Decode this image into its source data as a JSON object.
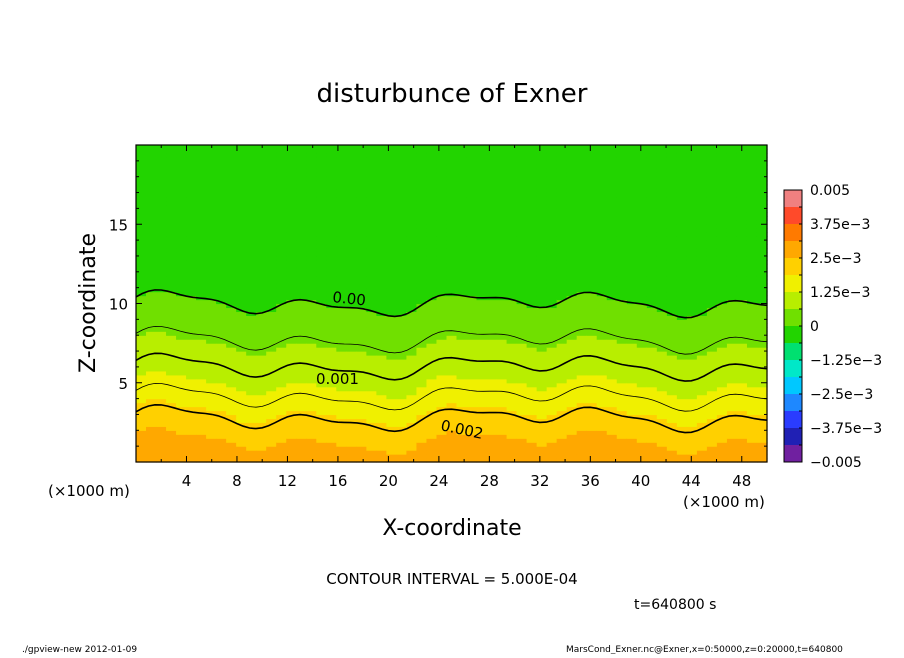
{
  "chart_data": {
    "type": "heatmap",
    "title": "disturbunce of Exner",
    "xlabel": "X-coordinate",
    "ylabel": "Z-coordinate",
    "x_unit_left": "(×1000 m)",
    "x_unit_right": "(×1000 m)",
    "xlim": [
      0,
      50
    ],
    "ylim": [
      0,
      20
    ],
    "x_ticks": [
      4,
      8,
      12,
      16,
      20,
      24,
      28,
      32,
      36,
      40,
      44,
      48
    ],
    "x_tick_labels": [
      "4",
      "8",
      "12",
      "16",
      "20",
      "24",
      "28",
      "32",
      "36",
      "40",
      "44",
      "48"
    ],
    "y_ticks": [
      5,
      10,
      15
    ],
    "y_tick_labels": [
      "5",
      "10",
      "15"
    ],
    "grid": false,
    "colorbar": {
      "placement": "right",
      "range": [
        -0.005,
        0.005
      ],
      "levels": 16,
      "labels": [
        "0.005",
        "3.75e−3",
        "2.5e−3",
        "1.25e−3",
        "0",
        "−1.25e−3",
        "−2.5e−3",
        "−3.75e−3",
        "−0.005"
      ],
      "colors_top_to_bottom": [
        "#f08080",
        "#ff4a2a",
        "#ff7a00",
        "#ffa800",
        "#ffd000",
        "#f0f000",
        "#b8ee00",
        "#70e000",
        "#22d400",
        "#00e070",
        "#00e8c8",
        "#00c8ff",
        "#1e88ff",
        "#2a3cff",
        "#2020b4",
        "#7020a0"
      ]
    },
    "contours": {
      "interval": 0.0005,
      "labels": [
        "0.00",
        "0.001",
        "0.002"
      ]
    },
    "field_levels_by_height": [
      {
        "z": 0.5,
        "value": 0.00275
      },
      {
        "z": 2,
        "value": 0.0023
      },
      {
        "z": 3.5,
        "value": 0.0017
      },
      {
        "z": 5,
        "value": 0.0012
      },
      {
        "z": 6.5,
        "value": 0.0009
      },
      {
        "z": 8,
        "value": 0.0004
      },
      {
        "z": 10,
        "value": 0.0
      },
      {
        "z": 13,
        "value": -0.0002
      },
      {
        "z": 17,
        "value": -0.0004
      }
    ]
  },
  "footer": {
    "contour_interval_text": "CONTOUR INTERVAL = 5.000E-04",
    "time_text": "t=640800  s",
    "program_text": "./gpview-new   2012-01-09",
    "source_text": "MarsCond_Exner.nc@Exner,x=0:50000,z=0:20000,t=640800"
  }
}
